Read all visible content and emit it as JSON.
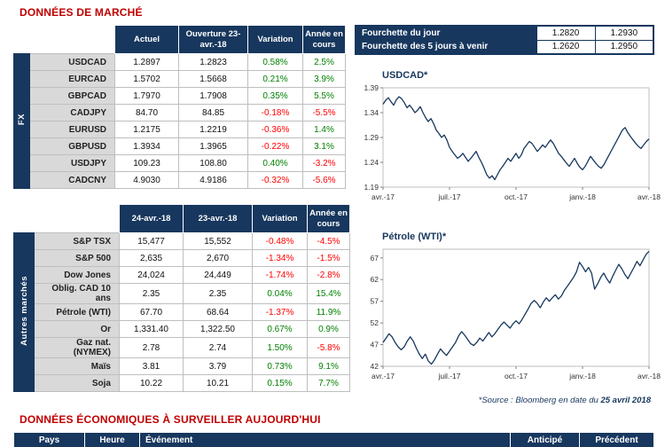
{
  "colors": {
    "navy": "#17375E",
    "title_red": "#C00000",
    "positive": "#008000",
    "negative": "#FF0000",
    "label_bg": "#D9D9D9",
    "chart_line": "#17375E"
  },
  "page": {
    "title": "DONNÉES DE MARCHÉ",
    "section2_title": "DONNÉES ÉCONOMIQUES À SURVEILLER AUJOURD'HUI",
    "source_prefix": "*Source : Bloomberg en date du ",
    "source_date": "25 avril 2018"
  },
  "fx_table": {
    "group_label": "FX",
    "headers": [
      "Actuel",
      "Ouverture 23-avr.-18",
      "Variation",
      "Année en cours"
    ],
    "rows": [
      {
        "label": "USDCAD",
        "c1": "1.2897",
        "c2": "1.2823",
        "var": "0.58%",
        "ytd": "2.5%"
      },
      {
        "label": "EURCAD",
        "c1": "1.5702",
        "c2": "1.5668",
        "var": "0.21%",
        "ytd": "3.9%"
      },
      {
        "label": "GBPCAD",
        "c1": "1.7970",
        "c2": "1.7908",
        "var": "0.35%",
        "ytd": "5.5%"
      },
      {
        "label": "CADJPY",
        "c1": "84.70",
        "c2": "84.85",
        "var": "-0.18%",
        "ytd": "-5.5%"
      },
      {
        "label": "EURUSD",
        "c1": "1.2175",
        "c2": "1.2219",
        "var": "-0.36%",
        "ytd": "1.4%"
      },
      {
        "label": "GBPUSD",
        "c1": "1.3934",
        "c2": "1.3965",
        "var": "-0.22%",
        "ytd": "3.1%"
      },
      {
        "label": "USDJPY",
        "c1": "109.23",
        "c2": "108.80",
        "var": "0.40%",
        "ytd": "-3.2%"
      },
      {
        "label": "CADCNY",
        "c1": "4.9030",
        "c2": "4.9186",
        "var": "-0.32%",
        "ytd": "-5.6%"
      }
    ]
  },
  "markets_table": {
    "group_label": "Autres marchés",
    "headers": [
      "24-avr.-18",
      "23-avr.-18",
      "Variation",
      "Année en cours"
    ],
    "rows": [
      {
        "label": "S&P TSX",
        "c1": "15,477",
        "c2": "15,552",
        "var": "-0.48%",
        "ytd": "-4.5%"
      },
      {
        "label": "S&P 500",
        "c1": "2,635",
        "c2": "2,670",
        "var": "-1.34%",
        "ytd": "-1.5%"
      },
      {
        "label": "Dow Jones",
        "c1": "24,024",
        "c2": "24,449",
        "var": "-1.74%",
        "ytd": "-2.8%"
      },
      {
        "label": "Oblig. CAD 10 ans",
        "c1": "2.35",
        "c2": "2.35",
        "var": "0.04%",
        "ytd": "15.4%"
      },
      {
        "label": "Pétrole (WTI)",
        "c1": "67.70",
        "c2": "68.64",
        "var": "-1.37%",
        "ytd": "11.9%"
      },
      {
        "label": "Or",
        "c1": "1,331.40",
        "c2": "1,322.50",
        "var": "0.67%",
        "ytd": "0.9%"
      },
      {
        "label": "Gaz nat. (NYMEX)",
        "c1": "2.78",
        "c2": "2.74",
        "var": "1.50%",
        "ytd": "-5.8%"
      },
      {
        "label": "Maïs",
        "c1": "3.81",
        "c2": "3.79",
        "var": "0.73%",
        "ytd": "9.1%"
      },
      {
        "label": "Soja",
        "c1": "10.22",
        "c2": "10.21",
        "var": "0.15%",
        "ytd": "7.7%"
      }
    ]
  },
  "fourchette_table": {
    "rows": [
      {
        "label": "Fourchette du jour",
        "low": "1.2820",
        "high": "1.2930"
      },
      {
        "label": "Fourchette des 5 jours à venir",
        "low": "1.2620",
        "high": "1.2950"
      }
    ]
  },
  "events_table": {
    "headers": [
      "Pays",
      "Heure",
      "Événement",
      "Anticipé",
      "Précédent"
    ]
  },
  "chart_data": [
    {
      "id": "usdcad",
      "type": "line",
      "title": "USDCAD*",
      "ylim": [
        1.19,
        1.39
      ],
      "yticks": [
        "1.19",
        "1.24",
        "1.29",
        "1.34",
        "1.39"
      ],
      "xticks": [
        "avr.-17",
        "juil.-17",
        "oct.-17",
        "janv.-18",
        "avr.-18"
      ],
      "values": [
        1.357,
        1.365,
        1.37,
        1.362,
        1.355,
        1.366,
        1.372,
        1.368,
        1.36,
        1.35,
        1.355,
        1.348,
        1.34,
        1.345,
        1.352,
        1.34,
        1.33,
        1.322,
        1.328,
        1.318,
        1.305,
        1.298,
        1.29,
        1.295,
        1.285,
        1.27,
        1.262,
        1.255,
        1.248,
        1.252,
        1.258,
        1.25,
        1.242,
        1.248,
        1.255,
        1.262,
        1.25,
        1.24,
        1.228,
        1.215,
        1.208,
        1.213,
        1.205,
        1.215,
        1.225,
        1.232,
        1.24,
        1.248,
        1.242,
        1.25,
        1.258,
        1.248,
        1.255,
        1.268,
        1.275,
        1.282,
        1.278,
        1.27,
        1.262,
        1.268,
        1.275,
        1.27,
        1.278,
        1.285,
        1.278,
        1.268,
        1.258,
        1.252,
        1.245,
        1.238,
        1.232,
        1.24,
        1.248,
        1.238,
        1.23,
        1.225,
        1.232,
        1.242,
        1.252,
        1.245,
        1.238,
        1.232,
        1.228,
        1.235,
        1.245,
        1.255,
        1.265,
        1.275,
        1.285,
        1.295,
        1.305,
        1.31,
        1.3,
        1.292,
        1.285,
        1.278,
        1.272,
        1.268,
        1.275,
        1.282,
        1.287
      ]
    },
    {
      "id": "wti",
      "type": "line",
      "title": "Pétrole (WTI)*",
      "ylim": [
        42,
        69
      ],
      "yticks": [
        "42",
        "47",
        "52",
        "57",
        "62",
        "67"
      ],
      "xticks": [
        "avr.-17",
        "juil.-17",
        "oct.-17",
        "janv.-18",
        "avr.-18"
      ],
      "values": [
        47.5,
        48.5,
        49.5,
        48.8,
        47.5,
        46.5,
        45.8,
        46.5,
        47.8,
        48.8,
        47.8,
        46.2,
        44.8,
        43.8,
        44.8,
        43.2,
        42.5,
        43.5,
        44.8,
        46.0,
        45.2,
        44.5,
        45.5,
        46.5,
        47.5,
        49.0,
        50.0,
        49.2,
        48.2,
        47.2,
        46.8,
        47.5,
        48.5,
        47.8,
        48.8,
        49.8,
        48.8,
        49.5,
        50.5,
        51.5,
        52.2,
        51.5,
        50.8,
        51.8,
        52.5,
        51.8,
        52.8,
        54.0,
        55.2,
        56.5,
        57.2,
        56.5,
        55.5,
        56.8,
        57.8,
        57.0,
        57.8,
        58.5,
        57.5,
        58.2,
        59.5,
        60.5,
        61.5,
        62.5,
        63.8,
        66.0,
        65.0,
        63.8,
        64.8,
        63.5,
        59.8,
        61.0,
        62.5,
        63.5,
        62.2,
        61.2,
        62.8,
        64.2,
        65.5,
        64.5,
        63.2,
        62.2,
        63.5,
        64.8,
        66.2,
        65.2,
        66.5,
        67.8,
        68.5
      ]
    }
  ]
}
